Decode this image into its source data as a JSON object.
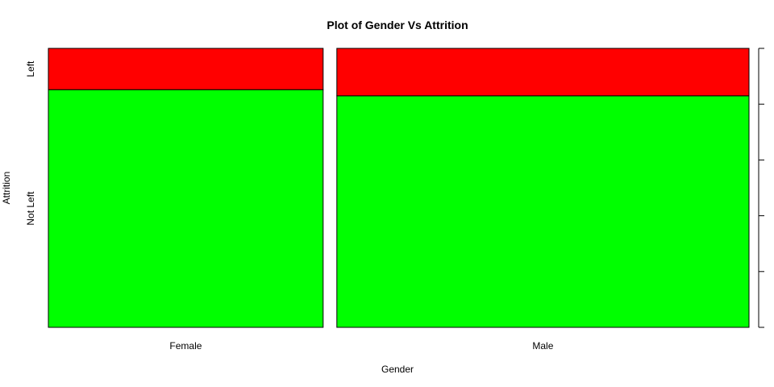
{
  "chart_data": {
    "type": "spineplot",
    "title": "Plot of Gender Vs Attrition",
    "xlabel": "Gender",
    "ylabel": "Attrition",
    "categories": [
      "Female",
      "Male"
    ],
    "widths": [
      0.4,
      0.6
    ],
    "series": [
      {
        "name": "Not Left",
        "color": "#00ff00",
        "values": [
          0.852,
          0.83
        ]
      },
      {
        "name": "Left",
        "color": "#ff0000",
        "values": [
          0.148,
          0.17
        ]
      }
    ],
    "y_axis_side": "right",
    "ylim": [
      0,
      1
    ],
    "yticks": [
      "0.0",
      "0.2",
      "0.4",
      "0.6",
      "0.8",
      "1.0"
    ],
    "grid": false
  }
}
